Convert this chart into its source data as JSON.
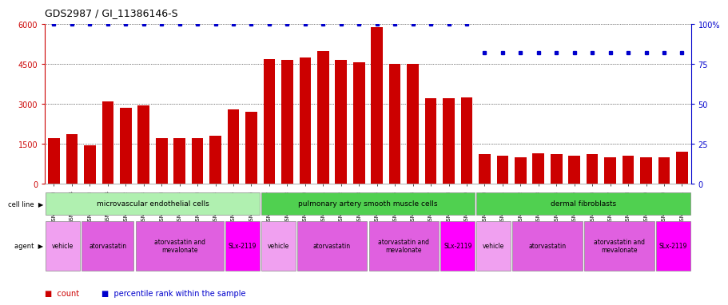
{
  "title": "GDS2987 / GI_11386146-S",
  "samples": [
    "GSM214810",
    "GSM215244",
    "GSM215253",
    "GSM215254",
    "GSM215282",
    "GSM215344",
    "GSM215283",
    "GSM215284",
    "GSM215293",
    "GSM215294",
    "GSM215295",
    "GSM215296",
    "GSM215297",
    "GSM215298",
    "GSM215310",
    "GSM215311",
    "GSM215312",
    "GSM215313",
    "GSM215324",
    "GSM215325",
    "GSM215326",
    "GSM215327",
    "GSM215328",
    "GSM215329",
    "GSM215330",
    "GSM215331",
    "GSM215332",
    "GSM215333",
    "GSM215334",
    "GSM215335",
    "GSM215336",
    "GSM215337",
    "GSM215338",
    "GSM215339",
    "GSM215340",
    "GSM215341"
  ],
  "counts": [
    1700,
    1850,
    1450,
    3100,
    2850,
    2950,
    1700,
    1700,
    1700,
    1800,
    2800,
    2700,
    4700,
    4650,
    4750,
    5000,
    4650,
    4550,
    5900,
    4500,
    4500,
    3200,
    3200,
    3250,
    1100,
    1050,
    1000,
    1150,
    1100,
    1050,
    1100,
    1000,
    1050,
    1000,
    1000,
    1200
  ],
  "percentiles_high": [
    true,
    true,
    true,
    true,
    true,
    true,
    true,
    true,
    true,
    true,
    true,
    true,
    true,
    true,
    true,
    true,
    true,
    true,
    true,
    true,
    true,
    true,
    true,
    true,
    false,
    false,
    false,
    false,
    false,
    false,
    false,
    false,
    false,
    false,
    false,
    false
  ],
  "pct_high_val": 100,
  "pct_low_val": 82,
  "bar_color": "#cc0000",
  "dot_color": "#0000cc",
  "ylim_left": [
    0,
    6000
  ],
  "ylim_right": [
    0,
    100
  ],
  "yticks_left": [
    0,
    1500,
    3000,
    4500,
    6000
  ],
  "yticks_right": [
    0,
    25,
    50,
    75,
    100
  ],
  "cell_line_groups": [
    {
      "label": "microvascular endothelial cells",
      "start": 0,
      "end": 12,
      "color": "#b0f0b0"
    },
    {
      "label": "pulmonary artery smooth muscle cells",
      "start": 12,
      "end": 24,
      "color": "#50d050"
    },
    {
      "label": "dermal fibroblasts",
      "start": 24,
      "end": 36,
      "color": "#50d050"
    }
  ],
  "agent_groups": [
    {
      "label": "vehicle",
      "start": 0,
      "end": 2,
      "color": "#f0a0f0"
    },
    {
      "label": "atorvastatin",
      "start": 2,
      "end": 5,
      "color": "#e060e0"
    },
    {
      "label": "atorvastatin and\nmevalonate",
      "start": 5,
      "end": 10,
      "color": "#e060e0"
    },
    {
      "label": "SLx-2119",
      "start": 10,
      "end": 12,
      "color": "#ff00ff"
    },
    {
      "label": "vehicle",
      "start": 12,
      "end": 14,
      "color": "#f0a0f0"
    },
    {
      "label": "atorvastatin",
      "start": 14,
      "end": 18,
      "color": "#e060e0"
    },
    {
      "label": "atorvastatin and\nmevalonate",
      "start": 18,
      "end": 22,
      "color": "#e060e0"
    },
    {
      "label": "SLx-2119",
      "start": 22,
      "end": 24,
      "color": "#ff00ff"
    },
    {
      "label": "vehicle",
      "start": 24,
      "end": 26,
      "color": "#f0a0f0"
    },
    {
      "label": "atorvastatin",
      "start": 26,
      "end": 30,
      "color": "#e060e0"
    },
    {
      "label": "atorvastatin and\nmevalonate",
      "start": 30,
      "end": 34,
      "color": "#e060e0"
    },
    {
      "label": "SLx-2119",
      "start": 34,
      "end": 36,
      "color": "#ff00ff"
    }
  ],
  "legend_count_color": "#cc0000",
  "legend_pct_color": "#0000cc",
  "background_color": "#ffffff",
  "tick_label_fontsize": 5.0,
  "title_fontsize": 9,
  "bar_color_left_axis": "#cc0000",
  "right_axis_color": "#0000cc"
}
